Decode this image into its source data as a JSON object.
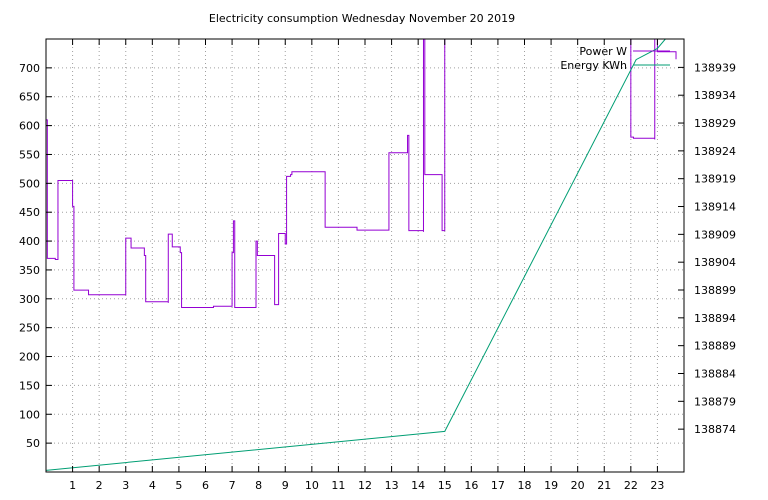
{
  "chart_data": {
    "type": "line",
    "title": "Electricity consumption Wednesday November 20 2019",
    "xlim": [
      0,
      24
    ],
    "ylim_left": [
      0,
      750
    ],
    "ylim_right": [
      138866.3,
      138944.1
    ],
    "x_ticks": [
      1,
      2,
      3,
      4,
      5,
      6,
      7,
      8,
      9,
      10,
      11,
      12,
      13,
      14,
      15,
      16,
      17,
      18,
      19,
      20,
      21,
      22,
      23
    ],
    "y_left_ticks": [
      50,
      100,
      150,
      200,
      250,
      300,
      350,
      400,
      450,
      500,
      550,
      600,
      650,
      700
    ],
    "y_right_ticks": [
      138874,
      138879,
      138884,
      138889,
      138894,
      138899,
      138904,
      138909,
      138914,
      138919,
      138924,
      138929,
      138934,
      138939
    ],
    "grid": true,
    "legend": "top-right",
    "series": [
      {
        "name": "Power W",
        "axis": "left",
        "color": "#9400d3",
        "step": true,
        "points": [
          [
            0.0,
            610
          ],
          [
            0.05,
            370
          ],
          [
            0.35,
            368
          ],
          [
            0.45,
            505
          ],
          [
            1.0,
            505
          ],
          [
            1.0,
            460
          ],
          [
            1.05,
            315
          ],
          [
            1.6,
            307
          ],
          [
            3.0,
            307
          ],
          [
            3.0,
            405
          ],
          [
            3.2,
            388
          ],
          [
            3.7,
            388
          ],
          [
            3.7,
            375
          ],
          [
            3.75,
            295
          ],
          [
            4.6,
            293
          ],
          [
            4.6,
            412
          ],
          [
            4.75,
            390
          ],
          [
            5.0,
            390
          ],
          [
            5.05,
            380
          ],
          [
            5.1,
            285
          ],
          [
            6.2,
            285
          ],
          [
            6.3,
            287
          ],
          [
            7.0,
            287
          ],
          [
            7.0,
            380
          ],
          [
            7.05,
            435
          ],
          [
            7.1,
            285
          ],
          [
            7.9,
            285
          ],
          [
            7.9,
            400
          ],
          [
            7.95,
            375
          ],
          [
            8.55,
            375
          ],
          [
            8.6,
            370
          ],
          [
            8.6,
            290
          ],
          [
            8.7,
            290
          ],
          [
            8.75,
            413
          ],
          [
            9.0,
            413
          ],
          [
            9.0,
            395
          ],
          [
            9.05,
            512
          ],
          [
            9.2,
            515
          ],
          [
            9.25,
            520
          ],
          [
            10.5,
            520
          ],
          [
            10.5,
            424
          ],
          [
            11.7,
            424
          ],
          [
            11.7,
            419
          ],
          [
            12.9,
            419
          ],
          [
            12.9,
            553
          ],
          [
            13.6,
            553
          ],
          [
            13.6,
            583
          ],
          [
            13.65,
            418
          ],
          [
            14.2,
            416
          ],
          [
            14.2,
            760
          ],
          [
            14.25,
            515
          ],
          [
            14.9,
            515
          ],
          [
            14.9,
            418
          ],
          [
            15.0,
            418
          ],
          [
            15.0,
            760
          ],
          [
            22.0,
            760
          ],
          [
            22.0,
            580
          ],
          [
            22.1,
            578
          ],
          [
            22.9,
            576
          ],
          [
            22.9,
            760
          ],
          [
            23.0,
            728
          ],
          [
            23.1,
            728
          ],
          [
            23.6,
            728
          ],
          [
            23.7,
            715
          ]
        ]
      },
      {
        "name": "Energy KWh",
        "axis": "right",
        "color": "#009e73",
        "step": false,
        "points": [
          [
            0.0,
            138866.6
          ],
          [
            15.0,
            138873.6
          ],
          [
            22.2,
            138940.4
          ],
          [
            23.0,
            138942.4
          ],
          [
            23.3,
            138944.1
          ],
          [
            23.7,
            138944.1
          ]
        ]
      }
    ]
  }
}
